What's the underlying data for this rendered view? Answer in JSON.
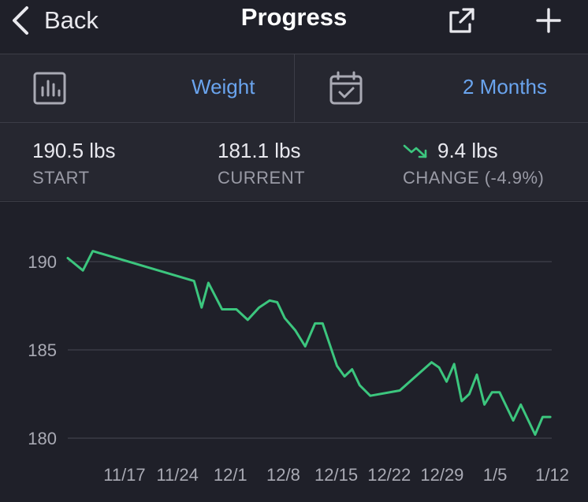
{
  "navbar": {
    "back_label": "Back",
    "title": "Progress",
    "share_icon": "share-icon",
    "add_icon": "plus-icon"
  },
  "selectors": {
    "metric": {
      "icon": "bar-chart-icon",
      "label": "Weight"
    },
    "range": {
      "icon": "calendar-icon",
      "label": "2 Months"
    }
  },
  "stats": {
    "start": {
      "value": "190.5 lbs",
      "label": "START"
    },
    "current": {
      "value": "181.1 lbs",
      "label": "CURRENT"
    },
    "change": {
      "icon": "trend-down-icon",
      "value": "9.4 lbs",
      "label": "CHANGE (-4.9%)"
    }
  },
  "colors": {
    "accent": "#6aa4ee",
    "line": "#3cc67e",
    "background": "#1f2029",
    "panel": "#262730"
  },
  "chart_data": {
    "type": "line",
    "title": "",
    "xlabel": "",
    "ylabel": "",
    "x_ticks": [
      {
        "day": 7,
        "label": "11/17"
      },
      {
        "day": 14,
        "label": "11/24"
      },
      {
        "day": 21,
        "label": "12/1"
      },
      {
        "day": 28,
        "label": "12/8"
      },
      {
        "day": 35,
        "label": "12/15"
      },
      {
        "day": 42,
        "label": "12/22"
      },
      {
        "day": 49,
        "label": "12/29"
      },
      {
        "day": 56,
        "label": "1/5"
      },
      {
        "day": 63,
        "label": "1/12"
      }
    ],
    "y_ticks": [
      190,
      185,
      180
    ],
    "ylim": [
      179.5,
      191.5
    ],
    "xlim": [
      -0.5,
      63.5
    ],
    "grid": true,
    "series": [
      {
        "name": "",
        "points": [
          [
            -0.5,
            190.2
          ],
          [
            1.5,
            189.5
          ],
          [
            2.8,
            190.6
          ],
          [
            16.2,
            188.9
          ],
          [
            17.2,
            187.4
          ],
          [
            18.1,
            188.8
          ],
          [
            19.9,
            187.3
          ],
          [
            21.8,
            187.3
          ],
          [
            23.3,
            186.7
          ],
          [
            24.8,
            187.4
          ],
          [
            26.2,
            187.8
          ],
          [
            27.2,
            187.7
          ],
          [
            28.2,
            186.8
          ],
          [
            29.6,
            186.1
          ],
          [
            30.9,
            185.2
          ],
          [
            32.2,
            186.5
          ],
          [
            33.2,
            186.5
          ],
          [
            35.1,
            184.1
          ],
          [
            36.1,
            183.5
          ],
          [
            37.1,
            183.9
          ],
          [
            38.1,
            183.0
          ],
          [
            39.5,
            182.4
          ],
          [
            43.4,
            182.7
          ],
          [
            47.6,
            184.3
          ],
          [
            48.6,
            184.0
          ],
          [
            49.6,
            183.2
          ],
          [
            50.6,
            184.2
          ],
          [
            51.6,
            182.1
          ],
          [
            52.6,
            182.5
          ],
          [
            53.6,
            183.6
          ],
          [
            54.6,
            181.9
          ],
          [
            55.6,
            182.6
          ],
          [
            56.6,
            182.6
          ],
          [
            58.4,
            181.0
          ],
          [
            59.4,
            181.9
          ],
          [
            61.3,
            180.2
          ],
          [
            62.3,
            181.2
          ],
          [
            63.3,
            181.2
          ]
        ]
      }
    ]
  }
}
